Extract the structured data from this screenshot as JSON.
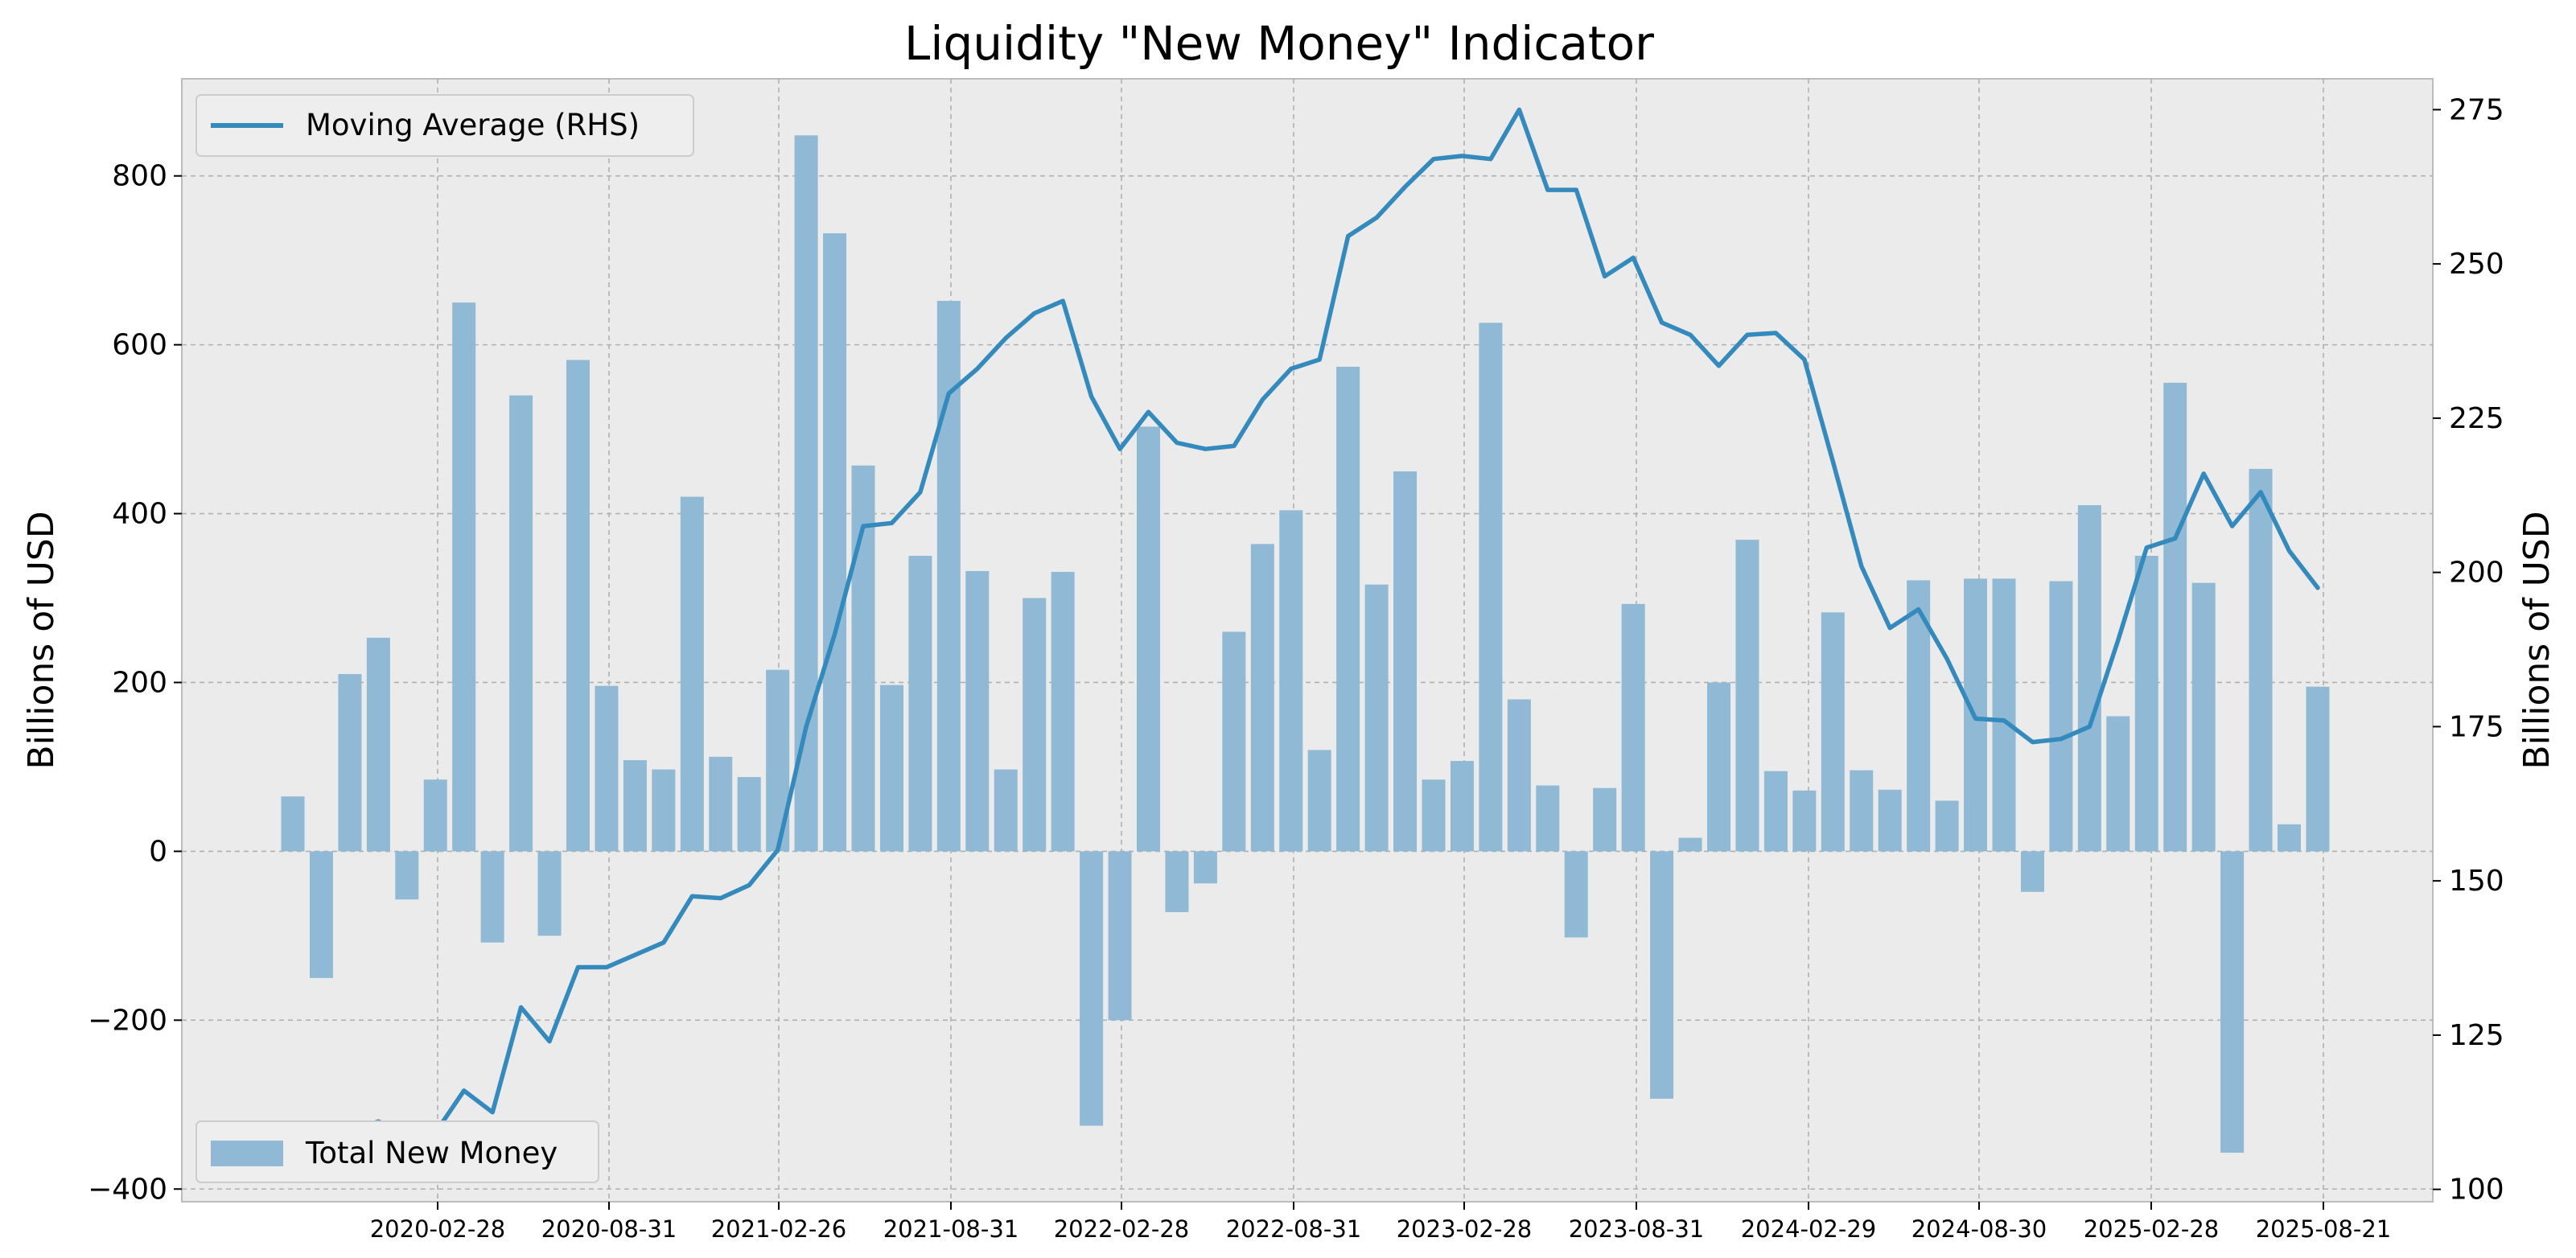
{
  "chart_data": {
    "type": "bar",
    "title": "Liquidity \"New Money\" Indicator",
    "ylabel_left": "Billions of USD",
    "ylabel_right": "Billions of USD",
    "ylim_left": [
      -415,
      915
    ],
    "ylim_right": [
      98,
      280
    ],
    "yticks_left": [
      -400,
      -200,
      0,
      200,
      400,
      600,
      800
    ],
    "yticks_left_labels": [
      "−400",
      "−200",
      "0",
      "200",
      "400",
      "600",
      "800"
    ],
    "yticks_right": [
      100,
      125,
      150,
      175,
      200,
      225,
      250,
      275
    ],
    "xtick_labels": [
      "2020-02-28",
      "2020-08-31",
      "2021-02-26",
      "2021-08-31",
      "2022-02-28",
      "2022-08-31",
      "2023-02-28",
      "2023-08-31",
      "2024-02-29",
      "2024-08-30",
      "2025-02-28",
      "2025-08-21"
    ],
    "grid": true,
    "legend_top_left": "Moving Average (RHS)",
    "legend_bottom_left": "Total New Money",
    "colors": {
      "bar": "#8FB9D4",
      "line": "#348ABD",
      "plot_bg": "#EBEBEB",
      "grid": "#B0B0B0"
    },
    "series": [
      {
        "name": "Total New Money",
        "kind": "bar",
        "axis": "left",
        "values": [
          65,
          -150,
          210,
          253,
          -57,
          85,
          650,
          -108,
          540,
          -100,
          582,
          196,
          108,
          97,
          420,
          112,
          88,
          215,
          848,
          732,
          457,
          197,
          350,
          652,
          332,
          97,
          300,
          331,
          -325,
          -200,
          503,
          -72,
          -38,
          260,
          364,
          404,
          120,
          574,
          316,
          450,
          85,
          107,
          626,
          180,
          78,
          -102,
          75,
          293,
          -293,
          16,
          200,
          369,
          95,
          72,
          283,
          96,
          73,
          321,
          60,
          323,
          323,
          -48,
          320,
          410,
          160,
          350,
          555,
          318,
          -357,
          453,
          32,
          195
        ]
      },
      {
        "name": "Moving Average (RHS)",
        "kind": "line",
        "axis": "right",
        "values": [
          108,
          105.5,
          109.5,
          111,
          109,
          109.2,
          116,
          112.5,
          129.5,
          124,
          136,
          136,
          138,
          140,
          147.5,
          147.2,
          149.3,
          155,
          175,
          190,
          207.5,
          208,
          213,
          229,
          233,
          238,
          242,
          244,
          228.5,
          220,
          226,
          221,
          220,
          220.5,
          228,
          233,
          234.5,
          254.5,
          257.5,
          262.5,
          267,
          267.5,
          267,
          275,
          262,
          262,
          248,
          251,
          240.5,
          238.5,
          233.5,
          238.5,
          238.8,
          234.5,
          218,
          201,
          191,
          194,
          186,
          176.3,
          176,
          172.5,
          173,
          175,
          189,
          204,
          205.5,
          216,
          207.5,
          213,
          203.5,
          197.5
        ]
      }
    ]
  }
}
